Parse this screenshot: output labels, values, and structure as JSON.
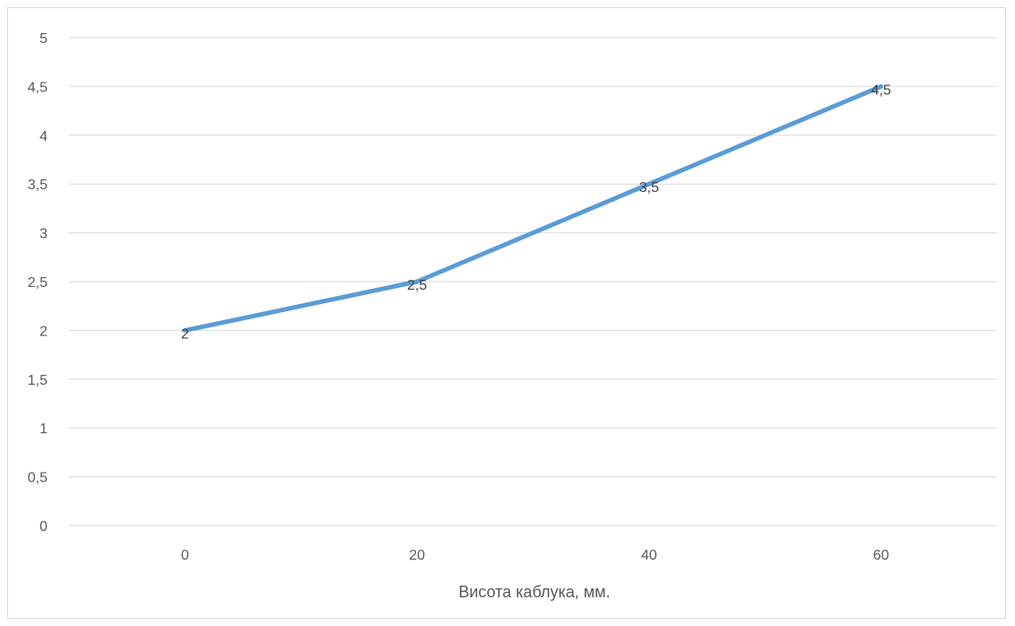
{
  "chart_data": {
    "type": "line",
    "title": "",
    "xlabel": "Висота каблука, мм.",
    "ylabel": "",
    "categories": [
      "0",
      "20",
      "40",
      "60"
    ],
    "series": [
      {
        "values": [
          2,
          2.5,
          3.5,
          4.5
        ],
        "data_labels": [
          "2",
          "2,5",
          "3,5",
          "4,5"
        ],
        "color": "#5b9bd5"
      }
    ],
    "ylim": [
      0,
      5
    ],
    "yticks": [
      {
        "value": 0,
        "label": "0"
      },
      {
        "value": 0.5,
        "label": "0,5"
      },
      {
        "value": 1,
        "label": "1"
      },
      {
        "value": 1.5,
        "label": "1,5"
      },
      {
        "value": 2,
        "label": "2"
      },
      {
        "value": 2.5,
        "label": "2,5"
      },
      {
        "value": 3,
        "label": "3"
      },
      {
        "value": 3.5,
        "label": "3,5"
      },
      {
        "value": 4,
        "label": "4"
      },
      {
        "value": 4.5,
        "label": "4,5"
      },
      {
        "value": 5,
        "label": "5"
      }
    ],
    "grid": true,
    "legend": "none",
    "colors": {
      "gridline": "#d9d9d9",
      "line": "#5b9bd5"
    }
  }
}
